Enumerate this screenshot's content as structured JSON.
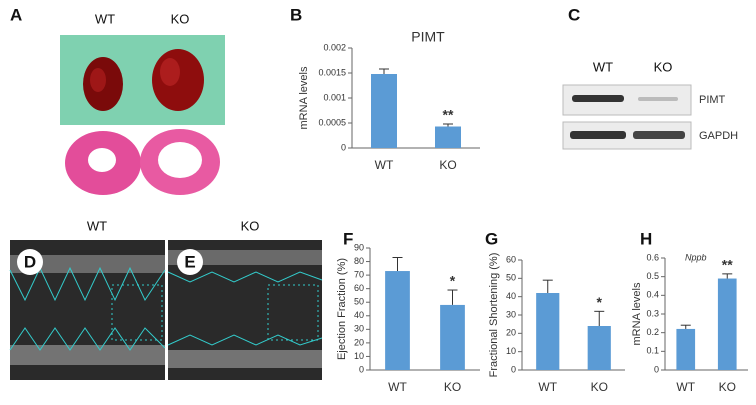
{
  "panels": {
    "A": {
      "label": "A",
      "wt": "WT",
      "ko": "KO"
    },
    "C": {
      "label": "C",
      "wt": "WT",
      "ko": "KO",
      "band1": "PIMT",
      "band2": "GAPDH"
    },
    "echo": {
      "wt": "WT",
      "ko": "KO",
      "d": "D",
      "e": "E"
    }
  },
  "chart_data": [
    {
      "type": "bar",
      "panel": "B",
      "title": "PIMT",
      "ylabel": "mRNA levels",
      "categories": [
        "WT",
        "KO"
      ],
      "values": [
        0.00148,
        0.00043
      ],
      "errors": [
        0.0001,
        5e-05
      ],
      "color": "#5b9bd5",
      "ylim": [
        0,
        0.002
      ],
      "yticks": [
        0,
        0.0005,
        0.001,
        0.0015,
        0.002
      ],
      "annotations": [
        {
          "text": "**",
          "x": "KO"
        }
      ]
    },
    {
      "type": "bar",
      "panel": "F",
      "ylabel": "Ejection Fraction (%)",
      "categories": [
        "WT",
        "KO"
      ],
      "values": [
        73,
        48
      ],
      "errors": [
        10,
        11
      ],
      "color": "#5b9bd5",
      "ylim": [
        0,
        90
      ],
      "yticks": [
        0,
        10,
        20,
        30,
        40,
        50,
        60,
        70,
        80,
        90
      ],
      "annotations": [
        {
          "text": "*",
          "x": "KO"
        }
      ]
    },
    {
      "type": "bar",
      "panel": "G",
      "ylabel": "Fractional Shortening (%)",
      "categories": [
        "WT",
        "KO"
      ],
      "values": [
        42,
        24
      ],
      "errors": [
        7,
        8
      ],
      "color": "#5b9bd5",
      "ylim": [
        0,
        60
      ],
      "yticks": [
        0,
        10,
        20,
        30,
        40,
        50,
        60
      ],
      "annotations": [
        {
          "text": "*",
          "x": "KO"
        }
      ]
    },
    {
      "type": "bar",
      "panel": "H",
      "title": "Nppb",
      "ylabel": "mRNA levels",
      "categories": [
        "WT",
        "KO"
      ],
      "values": [
        0.22,
        0.49
      ],
      "errors": [
        0.02,
        0.025
      ],
      "color": "#5b9bd5",
      "ylim": [
        0,
        0.6
      ],
      "yticks": [
        0,
        0.1,
        0.2,
        0.3,
        0.4,
        0.5,
        0.6
      ],
      "annotations": [
        {
          "text": "**",
          "x": "KO"
        }
      ]
    }
  ]
}
